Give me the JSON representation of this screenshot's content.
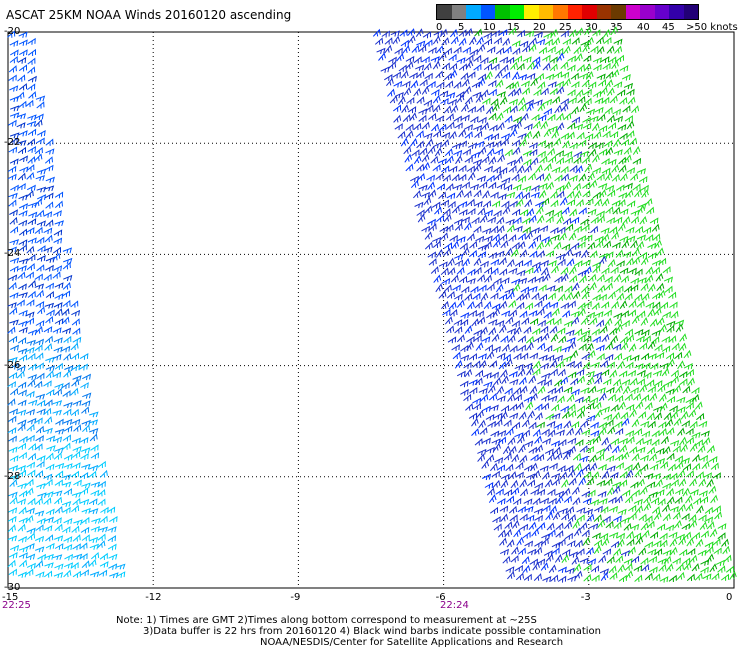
{
  "title": "ASCAT 25KM NOAA Winds 20160120 ascending",
  "colorbar": {
    "colors": [
      "#404040",
      "#808080",
      "#00aaff",
      "#0055ff",
      "#00c000",
      "#00ee00",
      "#ffee00",
      "#ffbb00",
      "#ff7700",
      "#ff2200",
      "#e00000",
      "#993300",
      "#6b3a00",
      "#cc00cc",
      "#9900cc",
      "#6600cc",
      "#3300aa",
      "#220077"
    ],
    "labels": [
      "0",
      "5",
      "10",
      "15",
      "20",
      "25",
      "30",
      "35",
      "40",
      "45",
      ">50 knots"
    ]
  },
  "axes": {
    "y_ticks": [
      "-20",
      "-22",
      "-24",
      "-26",
      "-28",
      "-30"
    ],
    "x_ticks": [
      "-15",
      "-12",
      "-9",
      "-6",
      "-3",
      "0"
    ],
    "xlim": [
      -15,
      0
    ],
    "ylim": [
      -30,
      -20
    ]
  },
  "times": [
    "22:25",
    "22:24"
  ],
  "notes": [
    "Note: 1) Times are GMT 2)Times along bottom correspond to measurement at ~25S",
    "3)Data buffer is 22 hrs from 20160120 4) Black wind barbs indicate possible contamination",
    "NOAA/NESDIS/Center for Satellite Applications and Research"
  ],
  "map_data": {
    "swaths": [
      {
        "name": "west-swath",
        "region": "lon -15 to -12.5, along left edge",
        "dominant_speed_knots": "10-15"
      },
      {
        "name": "east-swath",
        "region": "lon -7.3 to -0.2",
        "dominant_speed_knots": "15-25"
      }
    ]
  }
}
